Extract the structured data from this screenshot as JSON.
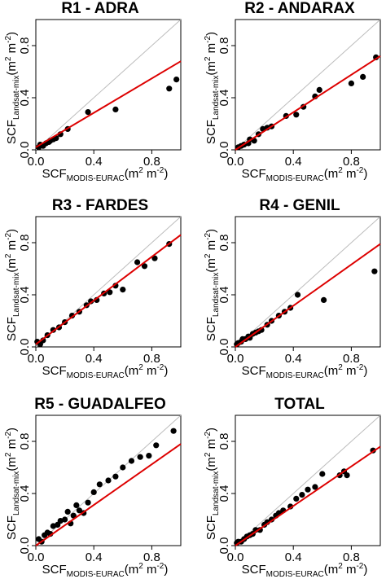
{
  "chart_data": [
    {
      "type": "scatter",
      "title": "R1 - ADRA",
      "xlabel": {
        "base": "SCF",
        "sub": "MODIS-EURAC",
        "unit": "(m",
        "sup": "2",
        "unit2": " m",
        "sup2": "-2",
        "close": ")"
      },
      "ylabel": {
        "base": "SCF",
        "sub": "Landsat-mix",
        "unit": "(m",
        "sup": "2",
        "unit2": " m",
        "sup2": "-2",
        "close": ")"
      },
      "xlim": [
        0,
        1
      ],
      "ylim": [
        0,
        1
      ],
      "xticks": [
        "0.0",
        "0.4",
        "0.8"
      ],
      "yticks": [
        "0.0",
        "0.4",
        "0.8"
      ],
      "tick_values": [
        0,
        0.4,
        0.8
      ],
      "one_to_one_line": true,
      "fit": {
        "slope": 0.66,
        "intercept": 0.02,
        "color": "#dd0000"
      },
      "x": [
        0.02,
        0.03,
        0.05,
        0.07,
        0.09,
        0.1,
        0.12,
        0.14,
        0.17,
        0.22,
        0.36,
        0.55,
        0.92,
        0.97
      ],
      "y": [
        0.02,
        0.04,
        0.03,
        0.05,
        0.06,
        0.07,
        0.08,
        0.09,
        0.12,
        0.16,
        0.29,
        0.31,
        0.47,
        0.54
      ]
    },
    {
      "type": "scatter",
      "title": "R2 - ANDARAX",
      "xlabel": {
        "base": "SCF",
        "sub": "MODIS-EURAC",
        "unit": "(m",
        "sup": "2",
        "unit2": " m",
        "sup2": "-2",
        "close": ")"
      },
      "ylabel": {
        "base": "SCF",
        "sub": "Landsat-mix",
        "unit": "(m",
        "sup": "2",
        "unit2": " m",
        "sup2": "-2",
        "close": ")"
      },
      "xlim": [
        0,
        1
      ],
      "ylim": [
        0,
        1
      ],
      "xticks": [
        "0.0",
        "0.4",
        "0.8"
      ],
      "yticks": [
        "0.0",
        "0.4",
        "0.8"
      ],
      "tick_values": [
        0,
        0.4,
        0.8
      ],
      "one_to_one_line": true,
      "fit": {
        "slope": 0.72,
        "intercept": 0.0,
        "color": "#dd0000"
      },
      "x": [
        0.02,
        0.04,
        0.06,
        0.09,
        0.1,
        0.13,
        0.16,
        0.19,
        0.22,
        0.25,
        0.35,
        0.42,
        0.47,
        0.55,
        0.58,
        0.8,
        0.88,
        0.97
      ],
      "y": [
        0.02,
        0.03,
        0.04,
        0.05,
        0.08,
        0.07,
        0.12,
        0.16,
        0.17,
        0.18,
        0.26,
        0.27,
        0.33,
        0.41,
        0.46,
        0.51,
        0.56,
        0.71
      ]
    },
    {
      "type": "scatter",
      "title": "R3 - FARDES",
      "xlabel": {
        "base": "SCF",
        "sub": "MODIS-EURAC",
        "unit": "(m",
        "sup": "2",
        "unit2": " m",
        "sup2": "-2",
        "close": ")"
      },
      "ylabel": {
        "base": "SCF",
        "sub": "Landsat-mix",
        "unit": "(m",
        "sup": "2",
        "unit2": " m",
        "sup2": "-2",
        "close": ")"
      },
      "xlim": [
        0,
        1
      ],
      "ylim": [
        0,
        1
      ],
      "xticks": [
        "0.0",
        "0.4",
        "0.8"
      ],
      "yticks": [
        "0.0",
        "0.4",
        "0.8"
      ],
      "tick_values": [
        0,
        0.4,
        0.8
      ],
      "one_to_one_line": true,
      "fit": {
        "slope": 0.84,
        "intercept": 0.02,
        "color": "#dd0000"
      },
      "x": [
        0.01,
        0.03,
        0.05,
        0.08,
        0.12,
        0.16,
        0.2,
        0.25,
        0.3,
        0.35,
        0.38,
        0.42,
        0.47,
        0.51,
        0.55,
        0.6,
        0.7,
        0.75,
        0.82,
        0.92
      ],
      "y": [
        0.04,
        0.02,
        0.05,
        0.09,
        0.13,
        0.15,
        0.19,
        0.24,
        0.27,
        0.32,
        0.35,
        0.36,
        0.41,
        0.42,
        0.47,
        0.44,
        0.65,
        0.62,
        0.68,
        0.79
      ]
    },
    {
      "type": "scatter",
      "title": "R4 - GENIL",
      "xlabel": {
        "base": "SCF",
        "sub": "MODIS-EURAC",
        "unit": "(m",
        "sup": "2",
        "unit2": " m",
        "sup2": "-2",
        "close": ")"
      },
      "ylabel": {
        "base": "SCF",
        "sub": "Landsat-mix",
        "unit": "(m",
        "sup": "2",
        "unit2": " m",
        "sup2": "-2",
        "close": ")"
      },
      "xlim": [
        0,
        1
      ],
      "ylim": [
        0,
        1
      ],
      "xticks": [
        "0.0",
        "0.4",
        "0.8"
      ],
      "yticks": [
        "0.0",
        "0.4",
        "0.8"
      ],
      "tick_values": [
        0,
        0.4,
        0.8
      ],
      "one_to_one_line": true,
      "fit": {
        "slope": 0.79,
        "intercept": 0.0,
        "color": "#dd0000"
      },
      "x": [
        0.01,
        0.02,
        0.04,
        0.05,
        0.07,
        0.09,
        0.1,
        0.12,
        0.14,
        0.16,
        0.18,
        0.22,
        0.25,
        0.3,
        0.34,
        0.38,
        0.43,
        0.61,
        0.96
      ],
      "y": [
        0.02,
        0.03,
        0.04,
        0.06,
        0.06,
        0.08,
        0.07,
        0.1,
        0.11,
        0.12,
        0.13,
        0.17,
        0.2,
        0.24,
        0.27,
        0.3,
        0.4,
        0.36,
        0.58
      ]
    },
    {
      "type": "scatter",
      "title": "R5 - GUADALFEO",
      "xlabel": {
        "base": "SCF",
        "sub": "MODIS-EURAC",
        "unit": "(m",
        "sup": "2",
        "unit2": " m",
        "sup2": "-2",
        "close": ")"
      },
      "ylabel": {
        "base": "SCF",
        "sub": "Landsat-mix",
        "unit": "(m",
        "sup": "2",
        "unit2": " m",
        "sup2": "-2",
        "close": ")"
      },
      "xlim": [
        0,
        1
      ],
      "ylim": [
        0,
        1
      ],
      "xticks": [
        "0.0",
        "0.4",
        "0.8"
      ],
      "yticks": [
        "0.0",
        "0.4",
        "0.8"
      ],
      "tick_values": [
        0,
        0.4,
        0.8
      ],
      "one_to_one_line": true,
      "fit": {
        "slope": 0.78,
        "intercept": 0.0,
        "color": "#dd0000"
      },
      "x": [
        0.02,
        0.04,
        0.06,
        0.08,
        0.1,
        0.12,
        0.15,
        0.17,
        0.2,
        0.22,
        0.24,
        0.26,
        0.28,
        0.3,
        0.33,
        0.36,
        0.4,
        0.44,
        0.5,
        0.55,
        0.6,
        0.66,
        0.72,
        0.78,
        0.83,
        0.95
      ],
      "y": [
        0.05,
        0.03,
        0.08,
        0.1,
        0.09,
        0.15,
        0.16,
        0.19,
        0.2,
        0.26,
        0.17,
        0.23,
        0.31,
        0.27,
        0.25,
        0.33,
        0.41,
        0.47,
        0.5,
        0.53,
        0.6,
        0.65,
        0.68,
        0.69,
        0.77,
        0.88
      ]
    },
    {
      "type": "scatter",
      "title": "TOTAL",
      "xlabel": {
        "base": "SCF",
        "sub": "MODIS-EURAC",
        "unit": "(m",
        "sup": "2",
        "unit2": " m",
        "sup2": "-2",
        "close": ")"
      },
      "ylabel": {
        "base": "SCF",
        "sub": "Landsat-mix",
        "unit": "(m",
        "sup": "2",
        "unit2": " m",
        "sup2": "-2",
        "close": ")"
      },
      "xlim": [
        0,
        1
      ],
      "ylim": [
        0,
        1
      ],
      "xticks": [
        "0.0",
        "0.4",
        "0.8"
      ],
      "yticks": [
        "0.0",
        "0.4",
        "0.8"
      ],
      "tick_values": [
        0,
        0.4,
        0.8
      ],
      "one_to_one_line": true,
      "fit": {
        "slope": 0.76,
        "intercept": 0.0,
        "color": "#dd0000"
      },
      "x": [
        0.01,
        0.02,
        0.04,
        0.06,
        0.08,
        0.1,
        0.12,
        0.14,
        0.17,
        0.2,
        0.22,
        0.25,
        0.28,
        0.3,
        0.33,
        0.38,
        0.42,
        0.46,
        0.5,
        0.55,
        0.6,
        0.72,
        0.75,
        0.77,
        0.95
      ],
      "y": [
        0.02,
        0.03,
        0.03,
        0.05,
        0.07,
        0.08,
        0.09,
        0.12,
        0.12,
        0.16,
        0.18,
        0.2,
        0.23,
        0.25,
        0.27,
        0.3,
        0.36,
        0.39,
        0.43,
        0.45,
        0.55,
        0.54,
        0.57,
        0.54,
        0.73
      ]
    }
  ],
  "colors": {
    "fit_line": "#dd0000",
    "one_to_one": "#bdbdbd",
    "points": "#000000",
    "axes": "#000000"
  }
}
